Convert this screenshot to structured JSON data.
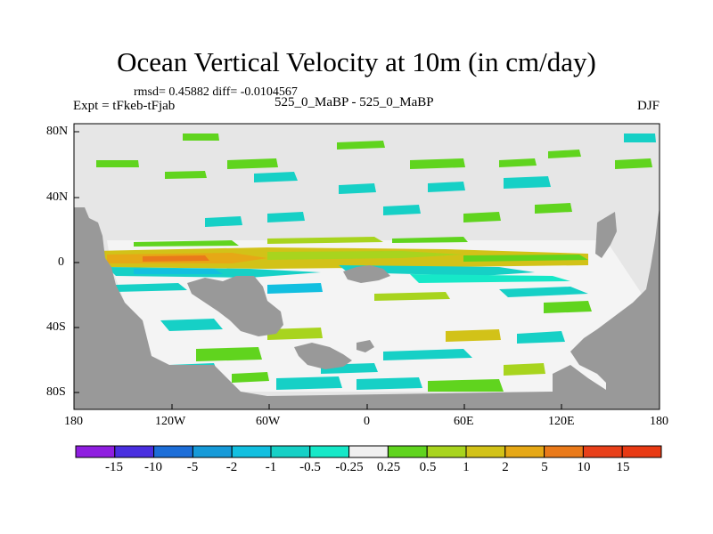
{
  "title": "Ocean Vertical Velocity at 10m (in cm/day)",
  "stats_line": "rmsd= 0.45882 diff= -0.0104567",
  "left_label": "Expt = tFkeb-tFjab",
  "center_label": "525_0_MaBP - 525_0_MaBP",
  "right_label": "DJF",
  "map": {
    "lat_ticks": [
      "80N",
      "40N",
      "0",
      "40S",
      "80S"
    ],
    "lon_ticks": [
      "180",
      "120W",
      "60W",
      "0",
      "60E",
      "120E",
      "180"
    ],
    "ocean_color": "#e6e6e6",
    "land_color": "#999999"
  },
  "colorbar": {
    "labels": [
      "-15",
      "-10",
      "-5",
      "-2",
      "-1",
      "-0.5",
      "-0.25",
      "0.25",
      "0.5",
      "1",
      "2",
      "5",
      "10",
      "15"
    ],
    "colors": [
      "#8f1ee0",
      "#4a2fe0",
      "#1d6ed8",
      "#169ad8",
      "#12bfe0",
      "#16d0c6",
      "#16e8c8",
      "#f0f0f0",
      "#60d41e",
      "#a8d41e",
      "#d2c218",
      "#e6a816",
      "#ea7a1a",
      "#e8401a",
      "#e83a14"
    ]
  }
}
